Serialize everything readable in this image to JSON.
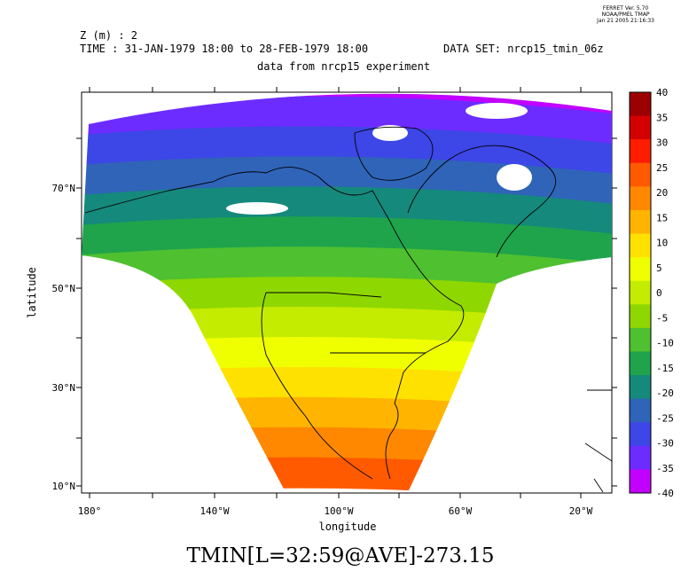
{
  "stamp": {
    "line1": "FERRET Ver. 5.70",
    "line2": "NOAA/PMEL TMAP",
    "line3": "Jan 21 2005 21:16:33"
  },
  "header": {
    "z_line": "Z (m) : 2",
    "time_line": "TIME : 31-JAN-1979 18:00 to 28-FEB-1979 18:00",
    "dataset_line": "DATA SET: nrcp15_tmin_06z",
    "subtitle": "data from nrcp15 experiment"
  },
  "caption": "TMIN[L=32:59@AVE]-273.15",
  "chart_data": {
    "type": "heatmap",
    "title": "TMIN[L=32:59@AVE]-273.15",
    "subtitle": "data from nrcp15 experiment",
    "xlabel": "longitude",
    "ylabel": "latitude",
    "x_ticks": [
      "180°",
      "140°W",
      "100°W",
      "60°W",
      "20°W"
    ],
    "y_ticks": [
      "10°N",
      "30°N",
      "50°N",
      "70°N"
    ],
    "xlim": [
      -184,
      -12
    ],
    "ylim": [
      9,
      88
    ],
    "colorbar": {
      "levels": [
        40,
        35,
        30,
        25,
        20,
        15,
        10,
        5,
        0,
        -5,
        -10,
        -15,
        -20,
        -25,
        -30,
        -35,
        -40
      ],
      "colors": [
        "#9c0000",
        "#d40000",
        "#ff1c00",
        "#ff5a00",
        "#ff8800",
        "#ffb400",
        "#ffe100",
        "#f0ff00",
        "#c4ec00",
        "#8fd700",
        "#4fc02f",
        "#1fa44c",
        "#15897c",
        "#2f64b8",
        "#3d46e6",
        "#6d2cff",
        "#c200ff"
      ]
    }
  }
}
